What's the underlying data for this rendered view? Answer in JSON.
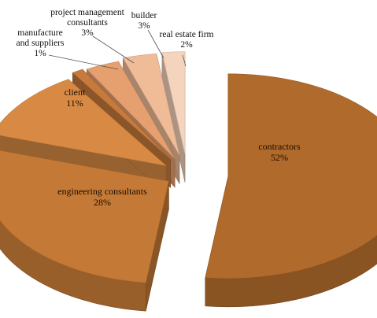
{
  "chart_data": {
    "type": "pie",
    "style": "3d-exploded",
    "series": [
      {
        "slices": [
          {
            "label_lines": [
              "contractors"
            ],
            "pct": "52%",
            "value": 52,
            "color": "#b06a2c"
          },
          {
            "label_lines": [
              "engineering consultants"
            ],
            "pct": "28%",
            "value": 28,
            "color": "#c47a36"
          },
          {
            "label_lines": [
              "client"
            ],
            "pct": "11%",
            "value": 11,
            "color": "#d88a44"
          },
          {
            "label_lines": [
              "manufacture",
              "and suppliers"
            ],
            "pct": "1%",
            "value": 1,
            "color": "#c77a3c"
          },
          {
            "label_lines": [
              "project management",
              "consultants"
            ],
            "pct": "3%",
            "value": 3,
            "color": "#e6a070"
          },
          {
            "label_lines": [
              "builder"
            ],
            "pct": "3%",
            "value": 3,
            "color": "#f0bc98"
          },
          {
            "label_lines": [
              "real estate firm"
            ],
            "pct": "2%",
            "value": 2,
            "color": "#f5d4bd"
          }
        ]
      }
    ]
  }
}
